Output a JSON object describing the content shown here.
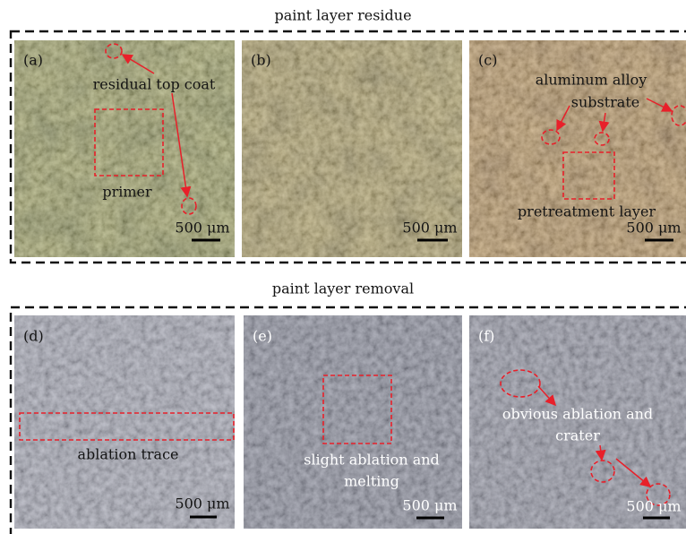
{
  "sections": [
    {
      "title": "paint layer residue",
      "panels": [
        {
          "label": "(a)",
          "annotations": [
            "residual top coat",
            "primer"
          ],
          "scale_bar": "500 μm"
        },
        {
          "label": "(b)",
          "scale_bar": "500 μm"
        },
        {
          "label": "(c)",
          "annotations": [
            "aluminum alloy",
            "substrate",
            "pretreatment layer"
          ],
          "scale_bar": "500 μm"
        }
      ]
    },
    {
      "title": "paint layer removal",
      "panels": [
        {
          "label": "(d)",
          "annotations": [
            "ablation trace"
          ],
          "scale_bar": "500 μm"
        },
        {
          "label": "(e)",
          "annotations": [
            "slight ablation and",
            "melting"
          ],
          "scale_bar": "500 μm"
        },
        {
          "label": "(f)",
          "annotations": [
            "obvious ablation and",
            "crater"
          ],
          "scale_bar": "500 μm"
        }
      ]
    }
  ]
}
